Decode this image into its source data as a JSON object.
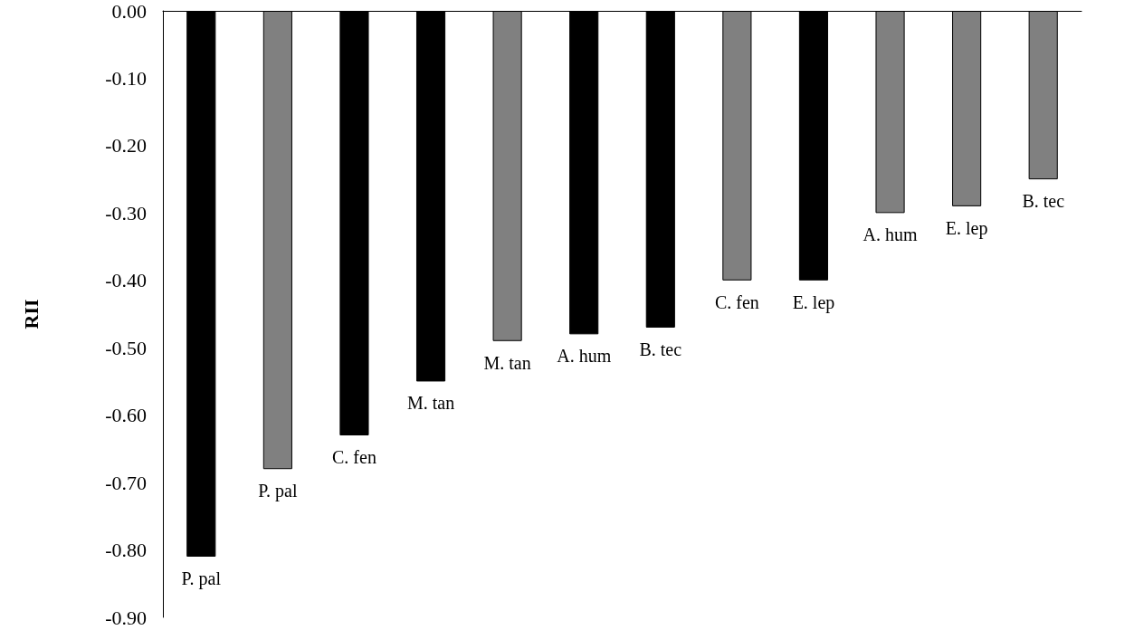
{
  "chart_data": {
    "type": "bar",
    "ylabel": "RII",
    "categories": [
      "P. pal",
      "P. pal",
      "C. fen",
      "M. tan",
      "M. tan",
      "A. hum",
      "B. tec",
      "C. fen",
      "E. lep",
      "A. hum",
      "E. lep",
      "B. tec"
    ],
    "values": [
      -0.81,
      -0.68,
      -0.63,
      -0.55,
      -0.49,
      -0.48,
      -0.47,
      -0.4,
      -0.4,
      -0.3,
      -0.29,
      -0.25
    ],
    "colors": [
      "#000000",
      "#808080",
      "#000000",
      "#000000",
      "#808080",
      "#000000",
      "#000000",
      "#808080",
      "#000000",
      "#808080",
      "#808080",
      "#808080"
    ],
    "ylim": [
      -0.9,
      0
    ],
    "yticks": [
      {
        "value": 0,
        "label": "0.00"
      },
      {
        "value": -0.1,
        "label": "-0.10"
      },
      {
        "value": -0.2,
        "label": "-0.20"
      },
      {
        "value": -0.3,
        "label": "-0.30"
      },
      {
        "value": -0.4,
        "label": "-0.40"
      },
      {
        "value": -0.5,
        "label": "-0.50"
      },
      {
        "value": -0.6,
        "label": "-0.60"
      },
      {
        "value": -0.7,
        "label": "-0.70"
      },
      {
        "value": -0.8,
        "label": "-0.80"
      },
      {
        "value": -0.9,
        "label": "-0.90"
      }
    ],
    "grid": false
  }
}
